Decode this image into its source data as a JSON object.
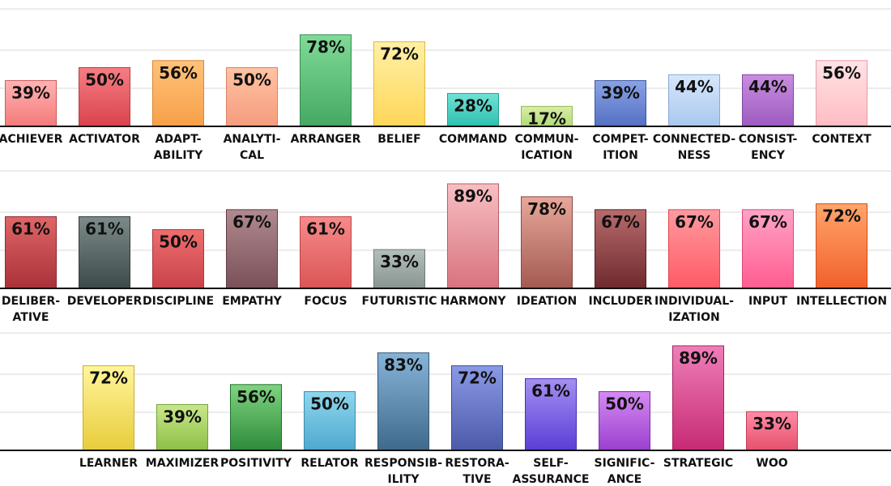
{
  "chart_data": [
    {
      "type": "bar",
      "ylim": [
        0,
        100
      ],
      "grid": true,
      "bars": [
        {
          "category": [
            "ACHIEVER"
          ],
          "value": 39,
          "label": "39%",
          "color_top": "#ffb3b3",
          "color_bottom": "#f47a7a",
          "stroke": "#d05a5a"
        },
        {
          "category": [
            "ACTIVATOR"
          ],
          "value": 50,
          "label": "50%",
          "color_top": "#f77d84",
          "color_bottom": "#d9434b",
          "stroke": "#b83a40"
        },
        {
          "category": [
            "ADAPT-",
            "ABILITY"
          ],
          "value": 56,
          "label": "56%",
          "color_top": "#ffc27a",
          "color_bottom": "#f7a048",
          "stroke": "#d98633"
        },
        {
          "category": [
            "ANALYTI-",
            "CAL"
          ],
          "value": 50,
          "label": "50%",
          "color_top": "#ffc3a3",
          "color_bottom": "#f59c7d",
          "stroke": "#d88466"
        },
        {
          "category": [
            "ARRANGER"
          ],
          "value": 78,
          "label": "78%",
          "color_top": "#7fdb97",
          "color_bottom": "#45a862",
          "stroke": "#378a4f"
        },
        {
          "category": [
            "BELIEF"
          ],
          "value": 72,
          "label": "72%",
          "color_top": "#fff0a6",
          "color_bottom": "#ffd659",
          "stroke": "#e0b840"
        },
        {
          "category": [
            "COMMAND"
          ],
          "value": 28,
          "label": "28%",
          "color_top": "#6fe3d6",
          "color_bottom": "#2fbfae",
          "stroke": "#249c8e"
        },
        {
          "category": [
            "COMMUN-",
            "ICATION"
          ],
          "value": 17,
          "label": "17%",
          "color_top": "#d9eea6",
          "color_bottom": "#b2d977",
          "stroke": "#93b85e"
        },
        {
          "category": [
            "COMPET-",
            "ITION"
          ],
          "value": 39,
          "label": "39%",
          "color_top": "#8aa3e6",
          "color_bottom": "#5470c2",
          "stroke": "#3f58a3"
        },
        {
          "category": [
            "CONNECTED-",
            "NESS"
          ],
          "value": 44,
          "label": "44%",
          "color_top": "#d6e7fb",
          "color_bottom": "#a9c8ef",
          "stroke": "#86a9d6"
        },
        {
          "category": [
            "CONSIST-",
            "ENCY"
          ],
          "value": 44,
          "label": "44%",
          "color_top": "#c88ee0",
          "color_bottom": "#9d5bc0",
          "stroke": "#8047a3"
        },
        {
          "category": [
            "CONTEXT"
          ],
          "value": 56,
          "label": "56%",
          "color_top": "#ffe3e6",
          "color_bottom": "#ffbcc3",
          "stroke": "#e89aa3"
        }
      ]
    },
    {
      "type": "bar",
      "ylim": [
        0,
        100
      ],
      "grid": true,
      "bars": [
        {
          "category": [
            "DELIBER-",
            "ATIVE"
          ],
          "value": 61,
          "label": "61%",
          "color_top": "#e06666",
          "color_bottom": "#a8323a",
          "stroke": "#8c2a30"
        },
        {
          "category": [
            "DEVELOPER"
          ],
          "value": 61,
          "label": "61%",
          "color_top": "#7d8a8a",
          "color_bottom": "#3d4a4a",
          "stroke": "#2f3a3a"
        },
        {
          "category": [
            "DISCIPLINE"
          ],
          "value": 50,
          "label": "50%",
          "color_top": "#ee6e6e",
          "color_bottom": "#c9434a",
          "stroke": "#a8373d"
        },
        {
          "category": [
            "EMPATHY"
          ],
          "value": 67,
          "label": "67%",
          "color_top": "#b08a8f",
          "color_bottom": "#7a5058",
          "stroke": "#5f3d44"
        },
        {
          "category": [
            "FOCUS"
          ],
          "value": 61,
          "label": "61%",
          "color_top": "#f78a8a",
          "color_bottom": "#db5555",
          "stroke": "#b94545"
        },
        {
          "category": [
            "FUTURISTIC"
          ],
          "value": 33,
          "label": "33%",
          "color_top": "#b4bfbb",
          "color_bottom": "#8a9591",
          "stroke": "#707a76"
        },
        {
          "category": [
            "HARMONY"
          ],
          "value": 89,
          "label": "89%",
          "color_top": "#f7bfc3",
          "color_bottom": "#d8737d",
          "stroke": "#b85c66"
        },
        {
          "category": [
            "IDEATION"
          ],
          "value": 78,
          "label": "78%",
          "color_top": "#e8a79a",
          "color_bottom": "#a35a52",
          "stroke": "#864840"
        },
        {
          "category": [
            "INCLUDER"
          ],
          "value": 67,
          "label": "67%",
          "color_top": "#b86b6b",
          "color_bottom": "#6e2a2e",
          "stroke": "#561f23"
        },
        {
          "category": [
            "INDIVIDUAL-",
            "IZATION"
          ],
          "value": 67,
          "label": "67%",
          "color_top": "#ff9aa0",
          "color_bottom": "#ff5a64",
          "stroke": "#dc4650"
        },
        {
          "category": [
            "INPUT"
          ],
          "value": 67,
          "label": "67%",
          "color_top": "#ffa3c7",
          "color_bottom": "#ff5c8f",
          "stroke": "#dc4a7a"
        },
        {
          "category": [
            "INTELLECTION"
          ],
          "value": 72,
          "label": "72%",
          "color_top": "#ffa56b",
          "color_bottom": "#f2602a",
          "stroke": "#cc4e1f"
        }
      ]
    },
    {
      "type": "bar",
      "ylim": [
        0,
        100
      ],
      "grid": true,
      "bars": [
        {
          "category": [
            "LEARNER"
          ],
          "value": 72,
          "label": "72%",
          "color_top": "#fff59a",
          "color_bottom": "#e8cc3c",
          "stroke": "#c9ae2c"
        },
        {
          "category": [
            "MAXIMIZER"
          ],
          "value": 39,
          "label": "39%",
          "color_top": "#c9e88a",
          "color_bottom": "#8cbf45",
          "stroke": "#72a036"
        },
        {
          "category": [
            "POSITIVITY"
          ],
          "value": 56,
          "label": "56%",
          "color_top": "#7fd47f",
          "color_bottom": "#2e8b3a",
          "stroke": "#23702d"
        },
        {
          "category": [
            "RELATOR"
          ],
          "value": 50,
          "label": "50%",
          "color_top": "#8fd6ec",
          "color_bottom": "#4ea9cf",
          "stroke": "#3c8cad"
        },
        {
          "category": [
            "RESPONSIB-",
            "ILITY"
          ],
          "value": 83,
          "label": "83%",
          "color_top": "#86b4d8",
          "color_bottom": "#3e6a8c",
          "stroke": "#305573"
        },
        {
          "category": [
            "RESTORA-",
            "TIVE"
          ],
          "value": 72,
          "label": "72%",
          "color_top": "#8a9ae6",
          "color_bottom": "#4b5aa8",
          "stroke": "#3b488c"
        },
        {
          "category": [
            "SELF-",
            "ASSURANCE"
          ],
          "value": 61,
          "label": "61%",
          "color_top": "#a58ff2",
          "color_bottom": "#5a3ed6",
          "stroke": "#4630b3"
        },
        {
          "category": [
            "SIGNIFIC-",
            "ANCE"
          ],
          "value": 50,
          "label": "50%",
          "color_top": "#d58af2",
          "color_bottom": "#9a3fcf",
          "stroke": "#7d31ad"
        },
        {
          "category": [
            "STRATEGIC"
          ],
          "value": 89,
          "label": "89%",
          "color_top": "#ee7fb8",
          "color_bottom": "#c72a74",
          "stroke": "#a4205f"
        },
        {
          "category": [
            "WOO"
          ],
          "value": 33,
          "label": "33%",
          "color_top": "#ff8ca8",
          "color_bottom": "#e6506c",
          "stroke": "#c43f58"
        }
      ]
    }
  ]
}
